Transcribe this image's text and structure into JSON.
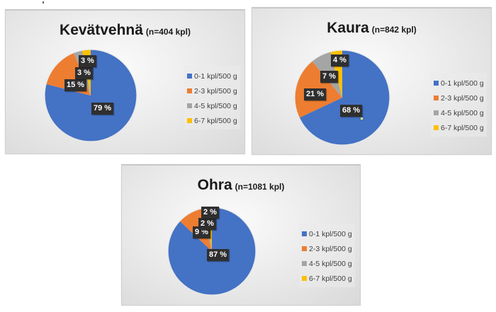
{
  "legend_labels": [
    "0-1 kpl/500 g",
    "2-3 kpl/500 g",
    "4-5 kpl/500 g",
    "6-7 kpl/500 g"
  ],
  "colors": [
    "#4472C4",
    "#ED7D31",
    "#A5A5A5",
    "#FFC000"
  ],
  "charts": [
    {
      "title": "Kevätvehnä",
      "subtitle": "(n=404 kpl)",
      "labels": [
        "79 %",
        "15 %",
        "3 %",
        "3 %"
      ]
    },
    {
      "title": "Kaura",
      "subtitle": "(n=842 kpl)",
      "labels": [
        "68 %",
        "21 %",
        "7 %",
        "4 %"
      ]
    },
    {
      "title": "Ohra",
      "subtitle": "(n=1081 kpl)",
      "labels": [
        "87 %",
        "9 %",
        "2 %",
        "2 %"
      ]
    }
  ],
  "chart_data": [
    {
      "type": "pie",
      "title": "Kevätvehnä (n=404 kpl)",
      "categories": [
        "0-1 kpl/500 g",
        "2-3 kpl/500 g",
        "4-5 kpl/500 g",
        "6-7 kpl/500 g"
      ],
      "values": [
        79,
        15,
        3,
        3
      ],
      "unit": "%",
      "legend_position": "right"
    },
    {
      "type": "pie",
      "title": "Kaura (n=842 kpl)",
      "categories": [
        "0-1 kpl/500 g",
        "2-3 kpl/500 g",
        "4-5 kpl/500 g",
        "6-7 kpl/500 g"
      ],
      "values": [
        68,
        21,
        7,
        4
      ],
      "unit": "%",
      "legend_position": "right"
    },
    {
      "type": "pie",
      "title": "Ohra (n=1081 kpl)",
      "categories": [
        "0-1 kpl/500 g",
        "2-3 kpl/500 g",
        "4-5 kpl/500 g",
        "6-7 kpl/500 g"
      ],
      "values": [
        87,
        9,
        2,
        2
      ],
      "unit": "%",
      "legend_position": "right"
    }
  ]
}
